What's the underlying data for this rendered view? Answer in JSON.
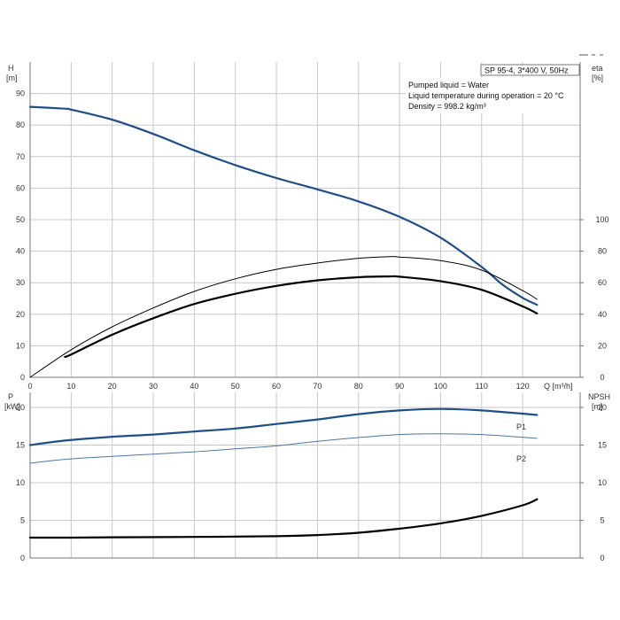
{
  "pump_title": "SP 95-4, 3*400 V, 50Hz",
  "info_lines": [
    "Pumped liquid = Water",
    "Liquid temperature during operation = 20 °C",
    "Density = 998.2 kg/m³"
  ],
  "colors": {
    "blue": "#1f4f8a",
    "light_blue": "#4b76a9",
    "black": "#000000",
    "grid": "#c8c8c8",
    "axis": "#777777"
  },
  "chart_data": [
    {
      "type": "line",
      "x_label": "Q [m³/h]",
      "x_ticks": [
        0,
        10,
        20,
        30,
        40,
        50,
        60,
        70,
        80,
        90,
        100,
        110,
        120
      ],
      "xlim": [
        0,
        134
      ],
      "y_label_top": "H",
      "y_label_unit": "[m]",
      "y_ticks": [
        0,
        10,
        20,
        30,
        40,
        50,
        60,
        70,
        80,
        90
      ],
      "ylim": [
        0,
        100
      ],
      "y2_label_top": "eta",
      "y2_label_unit": "[%]",
      "y2_ticks": [
        0,
        20,
        40,
        60,
        80,
        100
      ],
      "y2lim": [
        0,
        200
      ],
      "grid": true,
      "series": [
        {
          "name": "H",
          "axis": "left",
          "color": "#1f4f8a",
          "width": 2.2,
          "points": [
            [
              0,
              85.8
            ],
            [
              8.5,
              85.2
            ],
            [
              10,
              84.9
            ],
            [
              20,
              81.7
            ],
            [
              30,
              77.2
            ],
            [
              40,
              72.0
            ],
            [
              50,
              67.3
            ],
            [
              60,
              63.2
            ],
            [
              70,
              59.6
            ],
            [
              80,
              55.8
            ],
            [
              90,
              50.9
            ],
            [
              100,
              44.3
            ],
            [
              110,
              35.0
            ],
            [
              115,
              29.5
            ],
            [
              120,
              25.2
            ],
            [
              123.5,
              23.0
            ]
          ]
        },
        {
          "axis": "right",
          "color": "#000000",
          "width": 1,
          "points": [
            [
              0,
              0
            ],
            [
              10,
              17.5
            ],
            [
              20,
              32
            ],
            [
              30,
              44
            ],
            [
              40,
              54.5
            ],
            [
              50,
              62.5
            ],
            [
              60,
              68.5
            ],
            [
              70,
              72.5
            ],
            [
              80,
              75.5
            ],
            [
              87.5,
              76.5
            ],
            [
              90,
              76.3
            ],
            [
              100,
              74
            ],
            [
              110,
              68
            ],
            [
              120,
              55
            ],
            [
              123.5,
              49.5
            ]
          ]
        },
        {
          "axis": "right",
          "color": "#000000",
          "width": 2.2,
          "points": [
            [
              8.5,
              13
            ],
            [
              10,
              14.5
            ],
            [
              20,
              27
            ],
            [
              30,
              37.5
            ],
            [
              40,
              46.5
            ],
            [
              50,
              53
            ],
            [
              60,
              58
            ],
            [
              70,
              61.5
            ],
            [
              80,
              63.5
            ],
            [
              87.5,
              64
            ],
            [
              90,
              63.8
            ],
            [
              100,
              61
            ],
            [
              110,
              55.5
            ],
            [
              120,
              45
            ],
            [
              123.5,
              40.5
            ]
          ]
        }
      ]
    },
    {
      "type": "line",
      "x_ticks": [
        0,
        10,
        20,
        30,
        40,
        50,
        60,
        70,
        80,
        90,
        100,
        110,
        120
      ],
      "xlim": [
        0,
        134
      ],
      "y_label_top": "P",
      "y_label_unit": "[kW]",
      "y_ticks": [
        0,
        5,
        10,
        15,
        20
      ],
      "ylim": [
        0,
        22
      ],
      "y2_label_top": "NPSH",
      "y2_label_unit": "[m]",
      "y2_ticks": [
        0,
        5,
        10,
        15,
        20
      ],
      "y2lim": [
        0,
        22
      ],
      "grid": true,
      "series": [
        {
          "name": "P1",
          "axis": "left",
          "color": "#1f4f8a",
          "width": 2.2,
          "points": [
            [
              0,
              15.0
            ],
            [
              8.5,
              15.6
            ],
            [
              20,
              16.1
            ],
            [
              30,
              16.4
            ],
            [
              40,
              16.8
            ],
            [
              50,
              17.2
            ],
            [
              60,
              17.8
            ],
            [
              70,
              18.4
            ],
            [
              80,
              19.1
            ],
            [
              90,
              19.6
            ],
            [
              100,
              19.8
            ],
            [
              110,
              19.6
            ],
            [
              123.5,
              19.0
            ]
          ]
        },
        {
          "name": "P2",
          "axis": "left",
          "color": "#4b76a9",
          "width": 1,
          "points": [
            [
              0,
              12.6
            ],
            [
              8.5,
              13.1
            ],
            [
              20,
              13.5
            ],
            [
              30,
              13.8
            ],
            [
              40,
              14.1
            ],
            [
              50,
              14.5
            ],
            [
              60,
              14.9
            ],
            [
              70,
              15.5
            ],
            [
              80,
              16.0
            ],
            [
              90,
              16.4
            ],
            [
              100,
              16.5
            ],
            [
              110,
              16.4
            ],
            [
              123.5,
              15.9
            ]
          ]
        },
        {
          "axis": "right",
          "color": "#000000",
          "width": 2.2,
          "points": [
            [
              0,
              2.7
            ],
            [
              8.5,
              2.7
            ],
            [
              20,
              2.75
            ],
            [
              40,
              2.8
            ],
            [
              60,
              2.9
            ],
            [
              70,
              3.05
            ],
            [
              80,
              3.35
            ],
            [
              90,
              3.9
            ],
            [
              100,
              4.6
            ],
            [
              110,
              5.6
            ],
            [
              120,
              7.0
            ],
            [
              123.5,
              7.8
            ]
          ]
        }
      ]
    }
  ]
}
